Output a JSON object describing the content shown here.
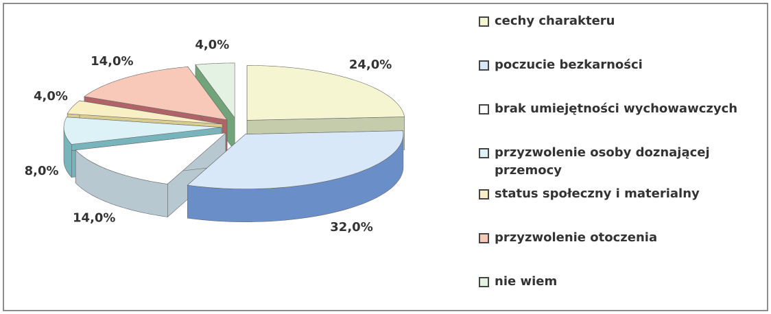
{
  "chart_data": {
    "type": "pie3d",
    "categories": [
      "cechy charakteru",
      "poczucie bezkarności",
      "brak umiejętności wychowawczych",
      "przyzwolenie osoby doznającej przemocy",
      "status społeczny i materialny",
      "przyzwolenie otoczenia",
      "nie wiem"
    ],
    "values": [
      24,
      32,
      14,
      8,
      4,
      14,
      4
    ],
    "value_labels": [
      "24,0%",
      "32,0%",
      "14,0%",
      "8,0%",
      "4,0%",
      "14,0%",
      "4,0%"
    ],
    "colors": [
      "#f5f5d2",
      "#d8e8f8",
      "#ffffff",
      "#dcf2f6",
      "#f8f0c4",
      "#f8c8b8",
      "#e4f2e4"
    ],
    "side_colors": [
      "#c4ccac",
      "#6a8ec8",
      "#b8c8d0",
      "#78b4bc",
      "#d8cc90",
      "#b06468",
      "#72a47a"
    ]
  }
}
